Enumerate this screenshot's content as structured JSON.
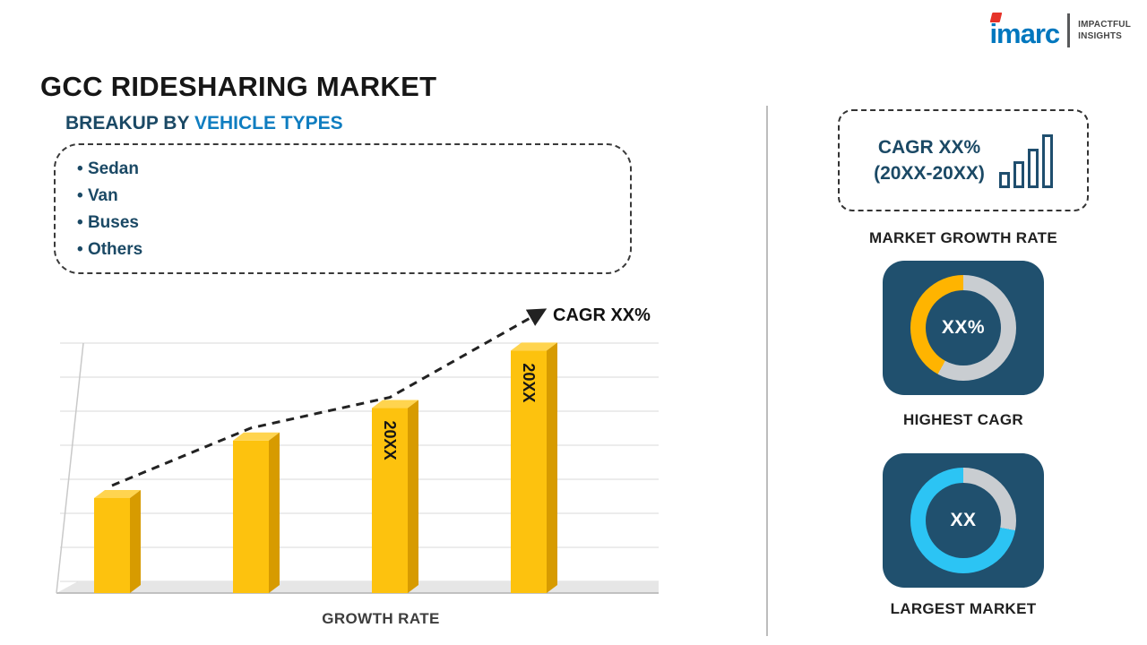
{
  "title": "GCC RIDESHARING MARKET",
  "logo": {
    "brand": "imarc",
    "tagline1": "IMPACTFUL",
    "tagline2": "INSIGHTS"
  },
  "breakup": {
    "heading_prefix": "BREAKUP BY",
    "heading_highlight": "VEHICLE TYPES",
    "items": [
      "Sedan",
      "Van",
      "Buses",
      "Others"
    ]
  },
  "chart_data": {
    "type": "bar",
    "categories": [
      "",
      "",
      "20XX",
      "20XX"
    ],
    "values": [
      38,
      61,
      74,
      97
    ],
    "ylim": [
      0,
      100
    ],
    "xlabel": "GROWTH RATE",
    "ylabel": "",
    "annotation": "CAGR XX%",
    "grid": true,
    "trend_arrow": true,
    "bar_color": "#fdc20e"
  },
  "sidebar": {
    "growth_box": {
      "line1": "CAGR XX%",
      "line2": "(20XX-20XX)",
      "caption": "MARKET GROWTH RATE"
    },
    "highest_cagr": {
      "value": "XX%",
      "caption": "HIGHEST CAGR",
      "fraction": 0.42,
      "ring_color": "#ffb400",
      "ring_rest": "#c9cdd1"
    },
    "largest_market": {
      "value": "XX",
      "caption": "LARGEST MARKET",
      "fraction": 0.72,
      "ring_color": "#2cc4f4",
      "ring_rest": "#c9cdd1"
    }
  },
  "colors": {
    "navy": "#1b4965",
    "blue": "#0f7dc0",
    "card_bg": "#20506e"
  }
}
